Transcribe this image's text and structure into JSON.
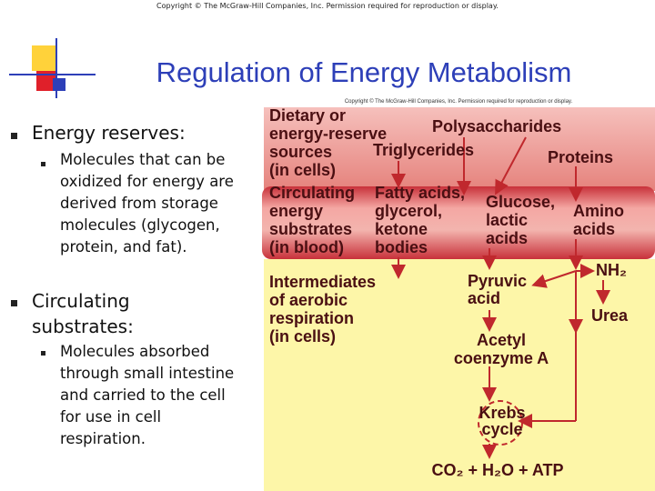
{
  "header": {
    "copyright": "Copyright © The McGraw-Hill Companies, Inc. Permission required for reproduction or display.",
    "title": "Regulation of Energy Metabolism"
  },
  "bullets": [
    {
      "text": "Energy reserves:",
      "sub": [
        "Molecules that can be oxidized for energy are derived from storage molecules (glycogen, protein, and fat)."
      ]
    },
    {
      "text": "Circulating substrates:",
      "sub": [
        "Molecules absorbed through small intestine and carried to the cell for use in cell respiration."
      ]
    }
  ],
  "figure": {
    "copyright": "Copyright © The McGraw-Hill Companies, Inc. Permission required for reproduction or display.",
    "regions": [
      {
        "lines": [
          "Dietary or",
          "energy-reserve",
          "sources",
          "(in cells)"
        ]
      },
      {
        "lines": [
          "Circulating",
          "energy",
          "substrates",
          "(in blood)"
        ]
      },
      {
        "lines": [
          "Intermediates",
          "of aerobic",
          "respiration",
          "(in cells)"
        ]
      }
    ],
    "nodes": [
      {
        "lines": [
          "Polysaccharides"
        ]
      },
      {
        "lines": [
          "Triglycerides"
        ]
      },
      {
        "lines": [
          "Proteins"
        ]
      },
      {
        "lines": [
          "Fatty acids,",
          "glycerol,",
          "ketone",
          "bodies"
        ]
      },
      {
        "lines": [
          "Glucose,",
          "lactic",
          "acids"
        ]
      },
      {
        "lines": [
          "Amino",
          "acids"
        ]
      },
      {
        "lines": [
          "Pyruvic",
          "acid"
        ]
      },
      {
        "lines": [
          "NH₂"
        ]
      },
      {
        "lines": [
          "Urea"
        ]
      },
      {
        "lines": [
          "Acetyl",
          "coenzyme A"
        ]
      },
      {
        "lines": [
          "Krebs",
          "cycle"
        ]
      },
      {
        "lines": [
          "CO₂ + H₂O + ATP"
        ]
      }
    ]
  }
}
